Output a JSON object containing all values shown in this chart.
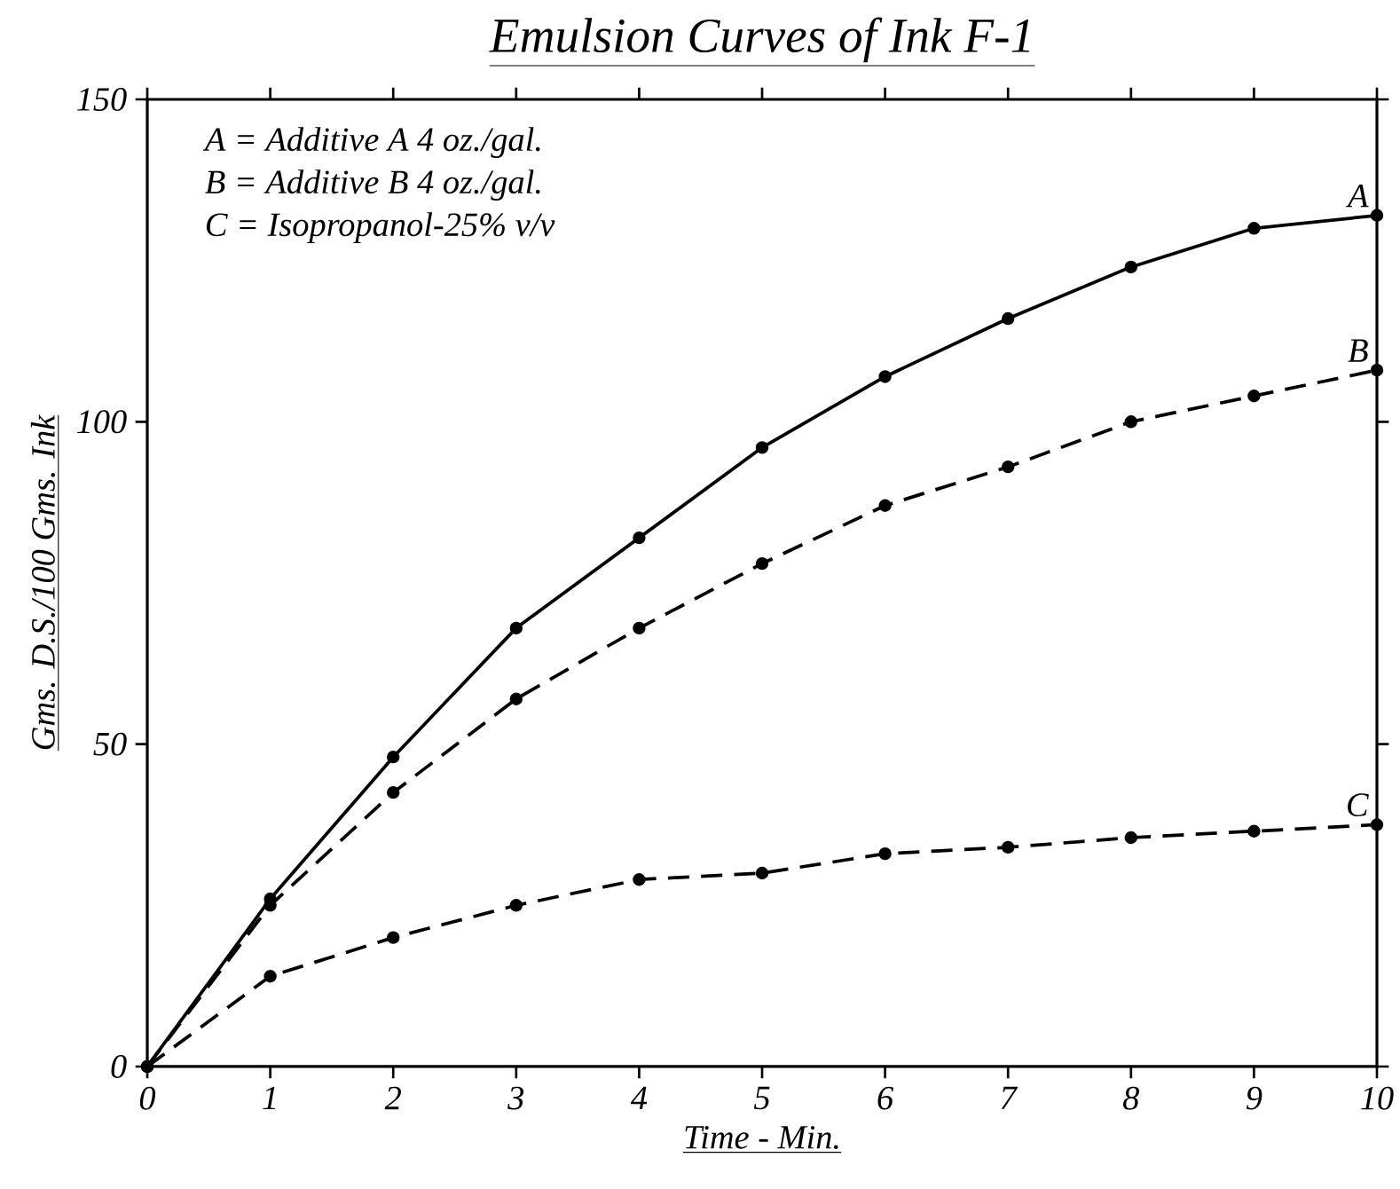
{
  "chart_data": {
    "type": "line",
    "title": "Emulsion Curves of Ink F-1",
    "xlabel": "Time - Min.",
    "ylabel": "Gms. D.S./100 Gms. Ink",
    "annotations": [
      "A = Additive A 4 oz./gal.",
      "B = Additive B 4 oz./gal.",
      "C = Isopropanol-25% v/v"
    ],
    "x": [
      0,
      1,
      2,
      3,
      4,
      5,
      6,
      7,
      8,
      9,
      10
    ],
    "series": [
      {
        "name": "A",
        "color": "#000000",
        "line_style": "solid",
        "values": [
          0,
          26,
          48,
          68,
          82,
          96,
          107,
          116,
          124,
          130,
          132
        ]
      },
      {
        "name": "B",
        "color": "#000000",
        "line_style": "dashed",
        "values": [
          0,
          25,
          42.5,
          57,
          68,
          78,
          87,
          93,
          100,
          104,
          108
        ]
      },
      {
        "name": "C",
        "color": "#000000",
        "line_style": "dashed",
        "values": [
          0,
          14,
          20,
          25,
          29,
          30,
          33,
          34,
          35.5,
          36.5,
          37.5
        ]
      }
    ],
    "marker": "circle",
    "xlim": [
      0,
      10
    ],
    "ylim": [
      0,
      150
    ],
    "xticks": [
      0,
      1,
      2,
      3,
      4,
      5,
      6,
      7,
      8,
      9,
      10
    ],
    "yticks": [
      0,
      50,
      100,
      150
    ]
  }
}
